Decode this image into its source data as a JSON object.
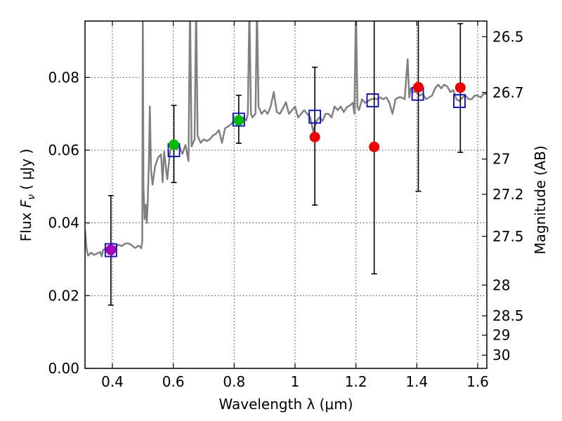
{
  "chart_data": {
    "type": "scatter",
    "title": "",
    "xlabel": "Wavelength  λ (μm)",
    "ylabel": "Flux  F_ν  ( μJy )",
    "ylabel_parts": {
      "prefix": "Flux  ",
      "symbol": "F",
      "subscript": "ν",
      "unit": "  ( μJy )"
    },
    "y2label": "Magnitude (AB)",
    "xlim": [
      0.31,
      1.63
    ],
    "ylim": [
      0.0,
      0.0955
    ],
    "grid": true,
    "x_ticks": [
      {
        "value": 0.4,
        "label": "0.4"
      },
      {
        "value": 0.6,
        "label": "0.6"
      },
      {
        "value": 0.8,
        "label": "0.8"
      },
      {
        "value": 1.0,
        "label": "1"
      },
      {
        "value": 1.2,
        "label": "1.2"
      },
      {
        "value": 1.4,
        "label": "1.4"
      },
      {
        "value": 1.6,
        "label": "1.6"
      }
    ],
    "y_ticks": [
      {
        "value": 0.0,
        "label": "0.00"
      },
      {
        "value": 0.02,
        "label": "0.02"
      },
      {
        "value": 0.04,
        "label": "0.04"
      },
      {
        "value": 0.06,
        "label": "0.06"
      },
      {
        "value": 0.08,
        "label": "0.08"
      }
    ],
    "y2_ticks": [
      {
        "value": 26.5,
        "label": "26.5"
      },
      {
        "value": 26.7,
        "label": "26.7"
      },
      {
        "value": 27.0,
        "label": "27"
      },
      {
        "value": 27.2,
        "label": "27.2"
      },
      {
        "value": 27.5,
        "label": "27.5"
      },
      {
        "value": 28.0,
        "label": "28"
      },
      {
        "value": 28.5,
        "label": "28.5"
      },
      {
        "value": 29.0,
        "label": "29"
      },
      {
        "value": 30.0,
        "label": "30"
      }
    ],
    "observed_photometry": [
      {
        "x": 0.395,
        "y": 0.0326,
        "yerr_low": 0.0174,
        "yerr_high": 0.0475,
        "color": "#aa00bb"
      },
      {
        "x": 0.602,
        "y": 0.0615,
        "yerr_low": 0.0511,
        "yerr_high": 0.0723,
        "color": "#00bb00"
      },
      {
        "x": 0.815,
        "y": 0.0682,
        "yerr_low": 0.0619,
        "yerr_high": 0.0751,
        "color": "#00bb00"
      },
      {
        "x": 1.065,
        "y": 0.0636,
        "yerr_low": 0.0449,
        "yerr_high": 0.0828,
        "color": "#ee0000"
      },
      {
        "x": 1.26,
        "y": 0.0609,
        "yerr_low": 0.026,
        "yerr_high": 0.1,
        "color": "#ee0000"
      },
      {
        "x": 1.405,
        "y": 0.0773,
        "yerr_low": 0.0487,
        "yerr_high": 0.1,
        "color": "#ee0000"
      },
      {
        "x": 1.543,
        "y": 0.0772,
        "yerr_low": 0.0594,
        "yerr_high": 0.0948,
        "color": "#ee0000"
      }
    ],
    "model_photometry": [
      {
        "x": 0.395,
        "y": 0.0325
      },
      {
        "x": 0.602,
        "y": 0.06
      },
      {
        "x": 0.815,
        "y": 0.0684
      },
      {
        "x": 1.065,
        "y": 0.0692
      },
      {
        "x": 1.255,
        "y": 0.0737
      },
      {
        "x": 1.403,
        "y": 0.0755
      },
      {
        "x": 1.54,
        "y": 0.0735
      }
    ],
    "model_spectrum": {
      "color": "#808080",
      "points": [
        [
          0.31,
          0.038
        ],
        [
          0.315,
          0.033
        ],
        [
          0.32,
          0.031
        ],
        [
          0.33,
          0.0318
        ],
        [
          0.34,
          0.0312
        ],
        [
          0.35,
          0.0316
        ],
        [
          0.36,
          0.032
        ],
        [
          0.365,
          0.0308
        ],
        [
          0.37,
          0.0326
        ],
        [
          0.38,
          0.033
        ],
        [
          0.39,
          0.0327
        ],
        [
          0.4,
          0.0336
        ],
        [
          0.41,
          0.0334
        ],
        [
          0.42,
          0.034
        ],
        [
          0.43,
          0.0336
        ],
        [
          0.44,
          0.0342
        ],
        [
          0.45,
          0.0344
        ],
        [
          0.46,
          0.0341
        ],
        [
          0.47,
          0.0334
        ],
        [
          0.475,
          0.0331
        ],
        [
          0.48,
          0.0334
        ],
        [
          0.485,
          0.0337
        ],
        [
          0.49,
          0.0335
        ],
        [
          0.495,
          0.033
        ],
        [
          0.498,
          0.035
        ],
        [
          0.5,
          0.1
        ],
        [
          0.502,
          0.05
        ],
        [
          0.506,
          0.041
        ],
        [
          0.51,
          0.045
        ],
        [
          0.513,
          0.04
        ],
        [
          0.516,
          0.046
        ],
        [
          0.52,
          0.057
        ],
        [
          0.523,
          0.072
        ],
        [
          0.527,
          0.0545
        ],
        [
          0.532,
          0.0505
        ],
        [
          0.54,
          0.0555
        ],
        [
          0.55,
          0.058
        ],
        [
          0.56,
          0.0588
        ],
        [
          0.565,
          0.0512
        ],
        [
          0.57,
          0.0596
        ],
        [
          0.58,
          0.052
        ],
        [
          0.585,
          0.056
        ],
        [
          0.59,
          0.06
        ],
        [
          0.6,
          0.0608
        ],
        [
          0.61,
          0.0603
        ],
        [
          0.62,
          0.061
        ],
        [
          0.63,
          0.059
        ],
        [
          0.64,
          0.0614
        ],
        [
          0.65,
          0.057
        ],
        [
          0.655,
          0.1
        ],
        [
          0.66,
          0.061
        ],
        [
          0.67,
          0.063
        ],
        [
          0.675,
          0.1
        ],
        [
          0.68,
          0.064
        ],
        [
          0.69,
          0.062
        ],
        [
          0.7,
          0.063
        ],
        [
          0.71,
          0.0625
        ],
        [
          0.72,
          0.063
        ],
        [
          0.73,
          0.064
        ],
        [
          0.74,
          0.0645
        ],
        [
          0.75,
          0.0655
        ],
        [
          0.76,
          0.062
        ],
        [
          0.77,
          0.066
        ],
        [
          0.78,
          0.0665
        ],
        [
          0.79,
          0.0672
        ],
        [
          0.8,
          0.068
        ],
        [
          0.81,
          0.0677
        ],
        [
          0.82,
          0.0685
        ],
        [
          0.83,
          0.069
        ],
        [
          0.84,
          0.0682
        ],
        [
          0.845,
          0.07
        ],
        [
          0.85,
          0.1
        ],
        [
          0.855,
          0.07
        ],
        [
          0.86,
          0.069
        ],
        [
          0.87,
          0.07
        ],
        [
          0.875,
          0.1
        ],
        [
          0.88,
          0.072
        ],
        [
          0.89,
          0.07
        ],
        [
          0.9,
          0.071
        ],
        [
          0.91,
          0.07
        ],
        [
          0.92,
          0.072
        ],
        [
          0.93,
          0.076
        ],
        [
          0.94,
          0.0705
        ],
        [
          0.95,
          0.07
        ],
        [
          0.96,
          0.0715
        ],
        [
          0.97,
          0.0732
        ],
        [
          0.98,
          0.07
        ],
        [
          0.99,
          0.071
        ],
        [
          1.0,
          0.072
        ],
        [
          1.01,
          0.069
        ],
        [
          1.02,
          0.07
        ],
        [
          1.03,
          0.071
        ],
        [
          1.04,
          0.07
        ],
        [
          1.05,
          0.069
        ],
        [
          1.06,
          0.065
        ],
        [
          1.07,
          0.068
        ],
        [
          1.08,
          0.069
        ],
        [
          1.09,
          0.068
        ],
        [
          1.1,
          0.07
        ],
        [
          1.11,
          0.07
        ],
        [
          1.12,
          0.069
        ],
        [
          1.13,
          0.072
        ],
        [
          1.14,
          0.071
        ],
        [
          1.15,
          0.072
        ],
        [
          1.16,
          0.0705
        ],
        [
          1.17,
          0.0718
        ],
        [
          1.18,
          0.0723
        ],
        [
          1.19,
          0.073
        ],
        [
          1.195,
          0.07
        ],
        [
          1.2,
          0.1
        ],
        [
          1.205,
          0.072
        ],
        [
          1.21,
          0.071
        ],
        [
          1.22,
          0.074
        ],
        [
          1.23,
          0.073
        ],
        [
          1.24,
          0.0735
        ],
        [
          1.25,
          0.074
        ],
        [
          1.26,
          0.0742
        ],
        [
          1.27,
          0.074
        ],
        [
          1.28,
          0.0745
        ],
        [
          1.29,
          0.074
        ],
        [
          1.3,
          0.0745
        ],
        [
          1.31,
          0.073
        ],
        [
          1.32,
          0.07
        ],
        [
          1.33,
          0.074
        ],
        [
          1.34,
          0.0745
        ],
        [
          1.35,
          0.0745
        ],
        [
          1.36,
          0.074
        ],
        [
          1.37,
          0.085
        ],
        [
          1.375,
          0.0745
        ],
        [
          1.38,
          0.077
        ],
        [
          1.39,
          0.076
        ],
        [
          1.4,
          0.076
        ],
        [
          1.41,
          0.075
        ],
        [
          1.42,
          0.0755
        ],
        [
          1.43,
          0.074
        ],
        [
          1.44,
          0.0745
        ],
        [
          1.45,
          0.075
        ],
        [
          1.46,
          0.077
        ],
        [
          1.47,
          0.078
        ],
        [
          1.48,
          0.077
        ],
        [
          1.49,
          0.078
        ],
        [
          1.5,
          0.0775
        ],
        [
          1.51,
          0.076
        ],
        [
          1.52,
          0.0765
        ],
        [
          1.53,
          0.074
        ],
        [
          1.54,
          0.0735
        ],
        [
          1.55,
          0.0745
        ],
        [
          1.56,
          0.075
        ],
        [
          1.57,
          0.074
        ],
        [
          1.58,
          0.074
        ],
        [
          1.59,
          0.075
        ],
        [
          1.6,
          0.075
        ],
        [
          1.61,
          0.0745
        ],
        [
          1.62,
          0.0755
        ],
        [
          1.63,
          0.0755
        ]
      ]
    }
  }
}
